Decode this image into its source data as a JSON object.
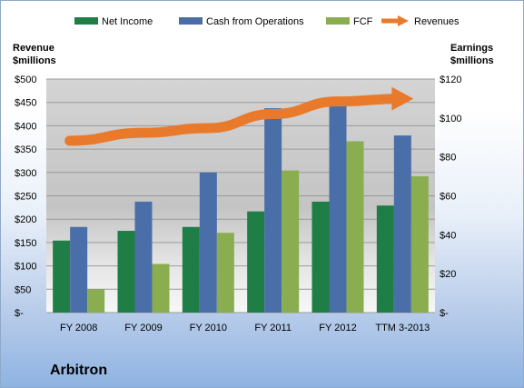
{
  "colors": {
    "net_income": "#1e7e45",
    "cash_from_operations": "#4a6ea8",
    "fcf": "#8aad4f",
    "revenues": "#e97a2b",
    "plot_bg": "#cfcfcf"
  },
  "company_name": "Arbitron",
  "chart_data": {
    "type": "bar",
    "categories": [
      "FY 2008",
      "FY 2009",
      "FY 2010",
      "FY 2011",
      "FY 2012",
      "TTM 3-2013"
    ],
    "series": [
      {
        "name": "Net Income",
        "axis": "right",
        "values": [
          37,
          42,
          44,
          52,
          57,
          55
        ]
      },
      {
        "name": "Cash from Operations",
        "axis": "right",
        "values": [
          44,
          57,
          72,
          105,
          110,
          91
        ]
      },
      {
        "name": "FCF",
        "axis": "right",
        "values": [
          12,
          25,
          41,
          73,
          88,
          70
        ]
      },
      {
        "name": "Revenues",
        "axis": "left",
        "type": "line-arrow",
        "values": [
          368,
          385,
          395,
          425,
          452,
          458
        ]
      }
    ],
    "left_axis": {
      "title_lines": [
        "Revenue",
        "$millions"
      ],
      "ticks": [
        "$-",
        "$50",
        "$100",
        "$150",
        "$200",
        "$250",
        "$300",
        "$350",
        "$400",
        "$450",
        "$500"
      ],
      "ylim": [
        0,
        500
      ]
    },
    "right_axis": {
      "title_lines": [
        "Earnings",
        "$millions"
      ],
      "ticks": [
        "$-",
        "$20",
        "$40",
        "$60",
        "$80",
        "$100",
        "$120"
      ],
      "ylim": [
        0,
        120
      ]
    },
    "legend": [
      "Net Income",
      "Cash from Operations",
      "FCF",
      "Revenues"
    ],
    "legend_position": "top",
    "grid": true
  }
}
